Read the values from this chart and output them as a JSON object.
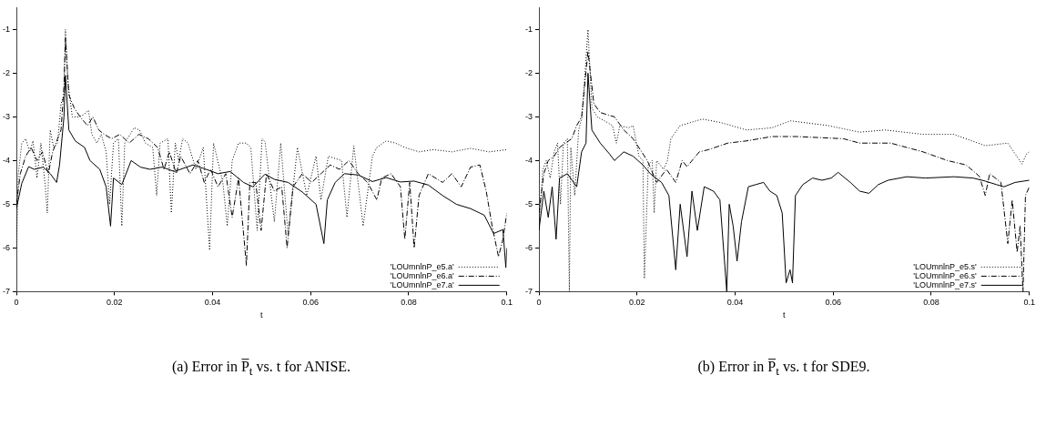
{
  "chart_data": [
    {
      "type": "line",
      "title": "(a) Error in P̅$_{t}$ vs. t for ANISE.",
      "xlabel": "t",
      "xlim": [
        0,
        0.1
      ],
      "ylim": [
        -7,
        -0.5
      ],
      "xticks": [
        0,
        0.02,
        0.04,
        0.06,
        0.08,
        0.1
      ],
      "yticks": [
        -7,
        -6,
        -5,
        -4,
        -3,
        -2,
        -1
      ],
      "legend": "bottom right",
      "series": [
        {
          "name": "'LOUmnlnP_e5.a'",
          "color": "#000000",
          "line_style": "dotted",
          "x": [
            0,
            0.0004,
            0.0011,
            0.0019,
            0.0027,
            0.0034,
            0.0042,
            0.005,
            0.0059,
            0.0063,
            0.0069,
            0.0076,
            0.0084,
            0.0091,
            0.0097,
            0.01,
            0.0105,
            0.0114,
            0.0126,
            0.0137,
            0.0147,
            0.0154,
            0.0164,
            0.0173,
            0.0183,
            0.019,
            0.0198,
            0.0208,
            0.0215,
            0.0221,
            0.0232,
            0.024,
            0.0251,
            0.0263,
            0.0278,
            0.0286,
            0.0293,
            0.0309,
            0.0316,
            0.0324,
            0.0331,
            0.0339,
            0.035,
            0.0366,
            0.0381,
            0.0394,
            0.0402,
            0.0421,
            0.043,
            0.044,
            0.0453,
            0.0469,
            0.0478,
            0.0491,
            0.0501,
            0.0507,
            0.0526,
            0.0539,
            0.0554,
            0.0573,
            0.0592,
            0.0611,
            0.0621,
            0.0636,
            0.0663,
            0.0674,
            0.0688,
            0.0707,
            0.0726,
            0.0735,
            0.0754,
            0.0773,
            0.0792,
            0.0821,
            0.085,
            0.0888,
            0.0926,
            0.0964,
            0.1
          ],
          "values": [
            -6.0,
            -4.3,
            -3.6,
            -3.5,
            -3.8,
            -3.55,
            -4.4,
            -3.6,
            -4.6,
            -5.2,
            -3.3,
            -3.7,
            -3.6,
            -2.7,
            -2.5,
            -1.0,
            -2.2,
            -3.0,
            -3.0,
            -2.95,
            -2.85,
            -3.4,
            -3.6,
            -3.4,
            -3.8,
            -5.0,
            -3.6,
            -3.5,
            -5.5,
            -3.6,
            -3.4,
            -3.25,
            -3.3,
            -3.6,
            -3.7,
            -4.8,
            -3.6,
            -3.5,
            -5.2,
            -3.6,
            -4.0,
            -3.5,
            -3.6,
            -4.2,
            -3.7,
            -6.05,
            -3.6,
            -4.5,
            -5.5,
            -4.0,
            -3.6,
            -3.6,
            -3.7,
            -5.6,
            -3.5,
            -3.57,
            -5.4,
            -3.6,
            -5.7,
            -3.7,
            -4.8,
            -3.9,
            -4.9,
            -3.9,
            -4.0,
            -5.3,
            -3.66,
            -5.5,
            -3.9,
            -3.7,
            -3.55,
            -3.6,
            -3.7,
            -3.8,
            -3.75,
            -3.8,
            -3.72,
            -3.8,
            -3.75
          ]
        },
        {
          "name": "'LOUmnlnP_e6.a'",
          "color": "#000000",
          "line_style": "dashed",
          "x": [
            0,
            0.0008,
            0.0019,
            0.003,
            0.0042,
            0.0053,
            0.0065,
            0.0074,
            0.0084,
            0.0091,
            0.0097,
            0.01,
            0.0107,
            0.0118,
            0.013,
            0.0145,
            0.0156,
            0.0168,
            0.0179,
            0.0194,
            0.0211,
            0.023,
            0.025,
            0.0269,
            0.0288,
            0.0301,
            0.0312,
            0.0326,
            0.0335,
            0.0354,
            0.037,
            0.0383,
            0.0396,
            0.0411,
            0.0427,
            0.044,
            0.0453,
            0.0469,
            0.0476,
            0.0488,
            0.0499,
            0.051,
            0.0526,
            0.0541,
            0.0552,
            0.0564,
            0.0583,
            0.0602,
            0.0621,
            0.064,
            0.0659,
            0.0678,
            0.0697,
            0.0716,
            0.0735,
            0.0745,
            0.0764,
            0.0783,
            0.0792,
            0.0802,
            0.0811,
            0.0821,
            0.084,
            0.0869,
            0.0888,
            0.0907,
            0.0926,
            0.0945,
            0.0958,
            0.097,
            0.0983,
            0.0992,
            0.1
          ],
          "values": [
            -5.0,
            -4.3,
            -3.9,
            -3.7,
            -4.0,
            -3.8,
            -4.3,
            -3.8,
            -3.5,
            -3.3,
            -2.3,
            -1.2,
            -2.5,
            -2.8,
            -3.0,
            -3.2,
            -3.0,
            -3.3,
            -3.4,
            -3.5,
            -3.4,
            -3.6,
            -3.4,
            -3.5,
            -3.7,
            -4.2,
            -3.8,
            -4.3,
            -3.9,
            -4.3,
            -4.0,
            -4.5,
            -4.2,
            -4.6,
            -4.3,
            -5.3,
            -4.4,
            -6.4,
            -4.5,
            -4.5,
            -5.6,
            -4.3,
            -4.7,
            -4.6,
            -6.0,
            -4.6,
            -4.3,
            -4.5,
            -4.3,
            -4.1,
            -4.2,
            -4.0,
            -4.3,
            -4.5,
            -4.9,
            -4.4,
            -4.3,
            -4.6,
            -5.8,
            -4.5,
            -6.0,
            -4.8,
            -4.3,
            -4.5,
            -4.3,
            -4.6,
            -4.15,
            -4.1,
            -4.7,
            -5.5,
            -6.2,
            -5.8,
            -5.2
          ]
        },
        {
          "name": "'LOUmnlnP_e7.a'",
          "color": "#000000",
          "line_style": "solid",
          "x": [
            0,
            0.0011,
            0.0025,
            0.0036,
            0.0055,
            0.0069,
            0.0082,
            0.0088,
            0.0097,
            0.01,
            0.0107,
            0.012,
            0.0139,
            0.015,
            0.017,
            0.0183,
            0.0192,
            0.0198,
            0.0215,
            0.0234,
            0.0253,
            0.0272,
            0.0297,
            0.0322,
            0.036,
            0.0387,
            0.0411,
            0.0436,
            0.0463,
            0.0482,
            0.0507,
            0.0526,
            0.0554,
            0.0583,
            0.0611,
            0.0627,
            0.0634,
            0.065,
            0.0669,
            0.0697,
            0.0726,
            0.0754,
            0.0783,
            0.0811,
            0.084,
            0.0869,
            0.0897,
            0.0926,
            0.0954,
            0.0973,
            0.0992,
            0.0998,
            0.1
          ],
          "values": [
            -5.1,
            -4.52,
            -4.14,
            -4.2,
            -4.15,
            -4.3,
            -4.5,
            -4.1,
            -3.0,
            -2.05,
            -3.3,
            -3.55,
            -3.7,
            -4.0,
            -4.2,
            -4.6,
            -5.5,
            -4.4,
            -4.55,
            -4.0,
            -4.15,
            -4.2,
            -4.15,
            -4.25,
            -4.1,
            -4.2,
            -4.3,
            -4.25,
            -4.5,
            -4.6,
            -4.31,
            -4.43,
            -4.5,
            -4.72,
            -5.0,
            -5.9,
            -4.9,
            -4.5,
            -4.3,
            -4.33,
            -4.48,
            -4.39,
            -4.49,
            -4.47,
            -4.56,
            -4.8,
            -5.0,
            -5.1,
            -5.25,
            -5.67,
            -5.58,
            -6.45,
            -6.0
          ]
        }
      ]
    },
    {
      "type": "line",
      "title": "(b) Error in P̅$_{t}$ vs. t for SDE9.",
      "xlabel": "t",
      "xlim": [
        0,
        0.1
      ],
      "ylim": [
        -7,
        -0.5
      ],
      "xticks": [
        0,
        0.02,
        0.04,
        0.06,
        0.08,
        0.1
      ],
      "yticks": [
        -7,
        -6,
        -5,
        -4,
        -3,
        -2,
        -1
      ],
      "legend": "bottom right",
      "series": [
        {
          "name": "'LOUmnlnP_e5.s'",
          "color": "#000000",
          "line_style": "dotted",
          "x": [
            0,
            0.0008,
            0.0015,
            0.0023,
            0.0031,
            0.0038,
            0.0044,
            0.005,
            0.0058,
            0.0062,
            0.0065,
            0.0073,
            0.0081,
            0.0088,
            0.01,
            0.0108,
            0.0119,
            0.0135,
            0.015,
            0.0158,
            0.0165,
            0.0183,
            0.0192,
            0.0204,
            0.0212,
            0.0215,
            0.0223,
            0.0231,
            0.0235,
            0.024,
            0.0254,
            0.0262,
            0.0269,
            0.0288,
            0.0333,
            0.0371,
            0.0423,
            0.0475,
            0.0513,
            0.059,
            0.0654,
            0.0706,
            0.0783,
            0.0846,
            0.091,
            0.0956,
            0.0985,
            0.0994,
            0.1
          ],
          "values": [
            -5.5,
            -4.2,
            -4.0,
            -4.4,
            -3.8,
            -3.6,
            -5.0,
            -3.6,
            -3.5,
            -7.0,
            -3.7,
            -4.8,
            -3.3,
            -3.0,
            -1.0,
            -2.8,
            -3.0,
            -3.1,
            -3.2,
            -3.6,
            -3.2,
            -3.25,
            -3.2,
            -3.9,
            -4.0,
            -6.7,
            -4.1,
            -4.0,
            -5.2,
            -4.0,
            -4.2,
            -4.0,
            -3.5,
            -3.2,
            -3.05,
            -3.13,
            -3.3,
            -3.25,
            -3.09,
            -3.2,
            -3.35,
            -3.3,
            -3.4,
            -3.4,
            -3.66,
            -3.6,
            -4.08,
            -3.85,
            -3.8
          ]
        },
        {
          "name": "'LOUmnlnP_e6.s'",
          "color": "#000000",
          "line_style": "dashed",
          "x": [
            0,
            0.001,
            0.0019,
            0.0031,
            0.0042,
            0.0054,
            0.0067,
            0.0077,
            0.0087,
            0.01,
            0.0112,
            0.0125,
            0.0154,
            0.0173,
            0.0192,
            0.0221,
            0.024,
            0.026,
            0.0279,
            0.0292,
            0.0302,
            0.0327,
            0.0346,
            0.0385,
            0.0423,
            0.0475,
            0.0525,
            0.0621,
            0.0654,
            0.0717,
            0.0783,
            0.0833,
            0.0871,
            0.0898,
            0.091,
            0.0919,
            0.0942,
            0.0956,
            0.0965,
            0.0975,
            0.0981,
            0.0987,
            0.0992,
            0.1
          ],
          "values": [
            -5.2,
            -4.3,
            -4.0,
            -3.9,
            -3.7,
            -3.6,
            -3.5,
            -3.2,
            -3.0,
            -1.5,
            -2.7,
            -2.9,
            -3.0,
            -3.3,
            -3.5,
            -4.0,
            -4.5,
            -4.2,
            -4.5,
            -4.0,
            -4.14,
            -3.8,
            -3.75,
            -3.6,
            -3.55,
            -3.45,
            -3.45,
            -3.5,
            -3.6,
            -3.6,
            -3.8,
            -4.0,
            -4.1,
            -4.36,
            -4.8,
            -4.3,
            -4.5,
            -5.9,
            -4.9,
            -6.1,
            -5.5,
            -7.0,
            -4.8,
            -4.6
          ]
        },
        {
          "name": "'LOUmnlnP_e7.s'",
          "color": "#000000",
          "line_style": "solid",
          "x": [
            0,
            0.001,
            0.0019,
            0.0027,
            0.0035,
            0.0042,
            0.0058,
            0.0077,
            0.0087,
            0.0096,
            0.01,
            0.0108,
            0.0125,
            0.0144,
            0.0154,
            0.0173,
            0.0192,
            0.0212,
            0.0227,
            0.025,
            0.0265,
            0.0279,
            0.0288,
            0.0302,
            0.0312,
            0.0323,
            0.0337,
            0.0356,
            0.0369,
            0.0377,
            0.0383,
            0.0388,
            0.0396,
            0.0404,
            0.0413,
            0.0427,
            0.0442,
            0.0458,
            0.0471,
            0.0485,
            0.0496,
            0.0504,
            0.0512,
            0.0517,
            0.0523,
            0.0538,
            0.0558,
            0.0577,
            0.0596,
            0.061,
            0.0635,
            0.0654,
            0.0673,
            0.0692,
            0.0712,
            0.075,
            0.0788,
            0.0846,
            0.0885,
            0.091,
            0.0933,
            0.0948,
            0.0971,
            0.1
          ],
          "values": [
            -5.6,
            -4.7,
            -5.3,
            -4.6,
            -5.8,
            -4.4,
            -4.3,
            -4.6,
            -3.8,
            -3.6,
            -2.0,
            -3.3,
            -3.6,
            -3.85,
            -4.0,
            -3.8,
            -3.9,
            -4.1,
            -4.3,
            -4.5,
            -4.8,
            -6.5,
            -5.0,
            -6.2,
            -4.7,
            -5.6,
            -4.6,
            -4.7,
            -4.9,
            -6.1,
            -7.0,
            -5.0,
            -5.5,
            -6.3,
            -5.4,
            -4.6,
            -4.55,
            -4.5,
            -4.7,
            -4.8,
            -5.2,
            -6.8,
            -6.5,
            -6.8,
            -4.8,
            -4.55,
            -4.4,
            -4.45,
            -4.4,
            -4.27,
            -4.5,
            -4.7,
            -4.75,
            -4.55,
            -4.45,
            -4.37,
            -4.4,
            -4.37,
            -4.4,
            -4.47,
            -4.55,
            -4.6,
            -4.5,
            -4.45
          ]
        }
      ]
    }
  ]
}
